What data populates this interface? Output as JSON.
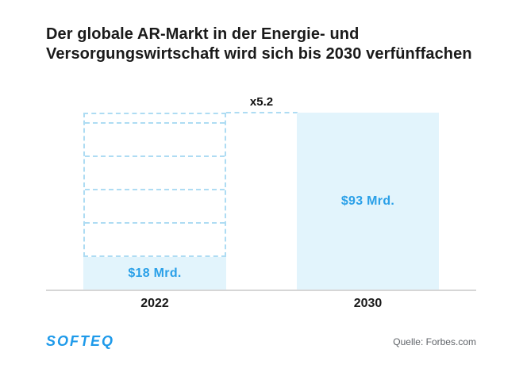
{
  "title": {
    "line1": "Der globale AR-Markt in der Energie- und",
    "line2": "Versorgungswirtschaft wird sich bis 2030 verfünffachen"
  },
  "chart_data": {
    "type": "bar",
    "title": "Der globale AR-Markt in der Energie- und Versorgungswirtschaft wird sich bis 2030 verfünffachen",
    "categories": [
      "2022",
      "2030"
    ],
    "values": [
      18,
      93
    ],
    "unit": "$ Mrd.",
    "value_labels": [
      "$18 Mrd.",
      "$93 Mrd."
    ],
    "multiplier_label": "x5.2",
    "ylim": [
      0,
      93.6
    ],
    "grid": false,
    "legend": false,
    "layout_hint": "2022 bar shows solid fill of $18 Mrd. with dashed ghost outline of 5.2 stacked segments projecting the 2030 total; 2030 bar fully solid",
    "colors": {
      "bar_fill": "#e2f4fc",
      "dashed_outline": "#aedcf3",
      "value_text": "#2aa0e8",
      "axis_line": "#d6d6d6",
      "label_text": "#191919"
    }
  },
  "footer": {
    "logo_text": "SOFTEQ",
    "logo_color": "#1e9aea",
    "source": "Quelle: Forbes.com"
  }
}
